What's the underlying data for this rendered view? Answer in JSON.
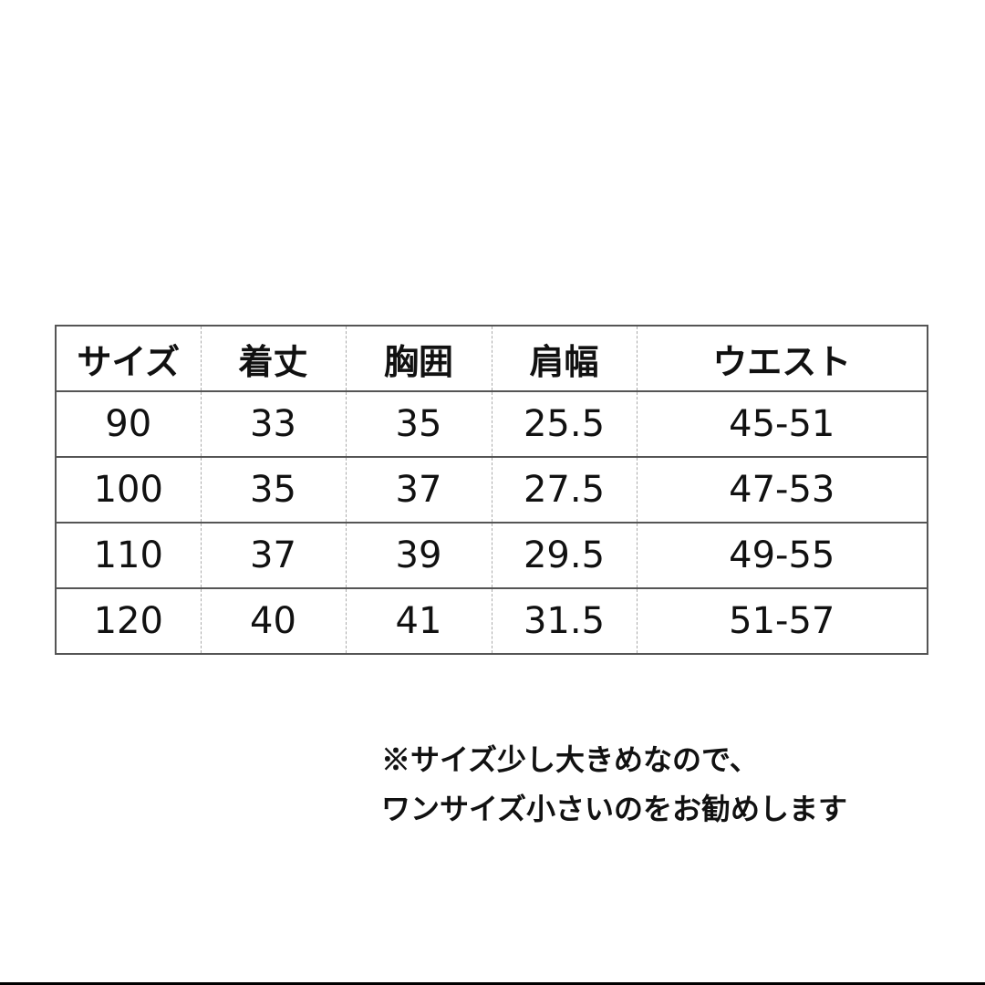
{
  "table": {
    "headers": [
      "サイズ",
      "着丈",
      "胸囲",
      "肩幅",
      "ウエスト"
    ],
    "rows": [
      [
        "90",
        "33",
        "35",
        "25.5",
        "45-51"
      ],
      [
        "100",
        "35",
        "37",
        "27.5",
        "47-53"
      ],
      [
        "110",
        "37",
        "39",
        "29.5",
        "49-55"
      ],
      [
        "120",
        "40",
        "41",
        "31.5",
        "51-57"
      ]
    ]
  },
  "note": {
    "line1": "※サイズ少し大きめなので、",
    "line2": "ワンサイズ小さいのをお勧めします"
  }
}
